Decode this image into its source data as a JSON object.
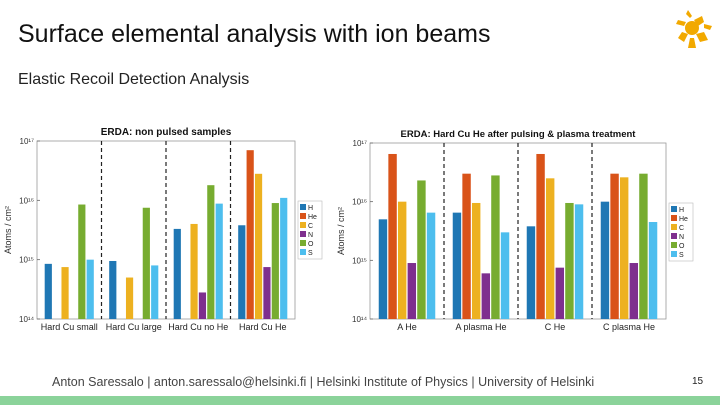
{
  "slide": {
    "title": "Surface elemental analysis with ion beams",
    "subtitle": "Elastic Recoil Detection Analysis",
    "footer": "Anton Saressalo | anton.saressalo@helsinki.fi | Helsinki Institute of Physics | University of Helsinki",
    "page_number": "15",
    "logo_icon": "flame-logo-icon",
    "colors": {
      "logo": "#f2a900",
      "bottom_bar": "#8bd39a"
    }
  },
  "chart_data": [
    {
      "type": "bar",
      "title": "ERDA: non pulsed samples",
      "ylabel": "Atoms / cm²",
      "yscale": "log",
      "ylim": [
        100000000000000.0,
        1e+17
      ],
      "yticks": [
        "10¹⁴",
        "10¹⁵",
        "10¹⁶",
        "10¹⁷"
      ],
      "categories": [
        "Hard Cu small",
        "Hard Cu large",
        "Hard Cu no He",
        "Hard Cu He"
      ],
      "legend": [
        "H",
        "He",
        "C",
        "N",
        "O",
        "S"
      ],
      "legend_position": "right",
      "colors": [
        "#1f77b4",
        "#d95319",
        "#edb120",
        "#7e2f8e",
        "#77ac30",
        "#4dbeee"
      ],
      "series": [
        {
          "name": "H",
          "values": [
            850000000000000.0,
            950000000000000.0,
            3300000000000000.0,
            3800000000000000.0
          ]
        },
        {
          "name": "He",
          "values": [
            null,
            null,
            null,
            7e+16
          ]
        },
        {
          "name": "C",
          "values": [
            750000000000000.0,
            500000000000000.0,
            4000000000000000.0,
            2.8e+16
          ]
        },
        {
          "name": "N",
          "values": [
            null,
            null,
            280000000000000.0,
            750000000000000.0
          ]
        },
        {
          "name": "O",
          "values": [
            8500000000000000.0,
            7500000000000000.0,
            1.8e+16,
            9000000000000000.0
          ]
        },
        {
          "name": "S",
          "values": [
            1000000000000000.0,
            800000000000000.0,
            8800000000000000.0,
            1.1e+16
          ]
        }
      ]
    },
    {
      "type": "bar",
      "title": "ERDA: Hard Cu He after pulsing & plasma treatment",
      "ylabel": "Atoms / cm²",
      "yscale": "log",
      "ylim": [
        100000000000000.0,
        1e+17
      ],
      "yticks": [
        "10¹⁴",
        "10¹⁵",
        "10¹⁶",
        "10¹⁷"
      ],
      "categories": [
        "A He",
        "A plasma He",
        "C He",
        "C plasma He"
      ],
      "legend": [
        "H",
        "He",
        "C",
        "N",
        "O",
        "S"
      ],
      "legend_position": "right",
      "colors": [
        "#1f77b4",
        "#d95319",
        "#edb120",
        "#7e2f8e",
        "#77ac30",
        "#4dbeee"
      ],
      "series": [
        {
          "name": "H",
          "values": [
            5000000000000000.0,
            6500000000000000.0,
            3800000000000000.0,
            1e+16
          ]
        },
        {
          "name": "He",
          "values": [
            6.5e+16,
            3e+16,
            6.5e+16,
            3e+16
          ]
        },
        {
          "name": "C",
          "values": [
            1e+16,
            9500000000000000.0,
            2.5e+16,
            2.6e+16
          ]
        },
        {
          "name": "N",
          "values": [
            900000000000000.0,
            600000000000000.0,
            750000000000000.0,
            900000000000000.0
          ]
        },
        {
          "name": "O",
          "values": [
            2.3e+16,
            2.8e+16,
            9500000000000000.0,
            3e+16
          ]
        },
        {
          "name": "S",
          "values": [
            6500000000000000.0,
            3000000000000000.0,
            9000000000000000.0,
            4500000000000000.0
          ]
        }
      ]
    }
  ]
}
